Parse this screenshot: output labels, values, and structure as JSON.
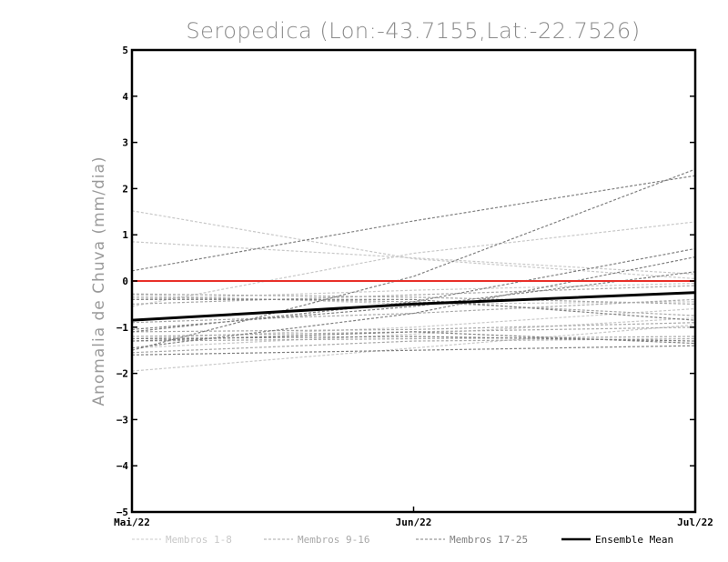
{
  "chart_data": {
    "type": "line",
    "title": "Seropedica (Lon:-43.7155,Lat:-22.7526)",
    "ylabel": "Anomalia de Chuva (mm/dia)",
    "xlabel": "",
    "categories": [
      "Mai/22",
      "Jun/22",
      "Jul/22"
    ],
    "ylim": [
      -5,
      5
    ],
    "yticks": [
      -5,
      -4,
      -3,
      -2,
      -1,
      0,
      1,
      2,
      3,
      4,
      5
    ],
    "reference_line": {
      "y": 0,
      "color": "#e8302a"
    },
    "legend": [
      {
        "label": "Membros 1-8",
        "color": "#c8c8c8"
      },
      {
        "label": "Membros 9-16",
        "color": "#a8a8a8"
      },
      {
        "label": "Membros 17-25",
        "color": "#7f7f7f"
      },
      {
        "label": "Ensemble Mean",
        "color": "#000000"
      }
    ],
    "series": [
      {
        "group": 0,
        "values": [
          1.52,
          0.48,
          0.05
        ]
      },
      {
        "group": 0,
        "values": [
          0.85,
          0.5,
          0.15
        ]
      },
      {
        "group": 0,
        "values": [
          -0.55,
          0.6,
          1.28
        ]
      },
      {
        "group": 0,
        "values": [
          -1.95,
          -1.45,
          -0.95
        ]
      },
      {
        "group": 0,
        "values": [
          -0.4,
          -0.2,
          -0.05
        ]
      },
      {
        "group": 0,
        "values": [
          -1.45,
          -1.15,
          -0.8
        ]
      },
      {
        "group": 0,
        "values": [
          -0.3,
          -0.5,
          -0.45
        ]
      },
      {
        "group": 0,
        "values": [
          -1.25,
          -1.0,
          -0.6
        ]
      },
      {
        "group": 1,
        "values": [
          -0.28,
          -0.35,
          -0.5
        ]
      },
      {
        "group": 1,
        "values": [
          -1.2,
          -1.1,
          -1.0
        ]
      },
      {
        "group": 1,
        "values": [
          -1.3,
          -1.25,
          -1.2
        ]
      },
      {
        "group": 1,
        "values": [
          -0.5,
          -0.3,
          -0.1
        ]
      },
      {
        "group": 1,
        "values": [
          -1.1,
          -1.05,
          -0.9
        ]
      },
      {
        "group": 1,
        "values": [
          -0.35,
          -0.45,
          -0.75
        ]
      },
      {
        "group": 1,
        "values": [
          -1.55,
          -1.3,
          -1.25
        ]
      },
      {
        "group": 1,
        "values": [
          -0.9,
          -0.7,
          -0.4
        ]
      },
      {
        "group": 2,
        "values": [
          0.22,
          1.3,
          2.28
        ]
      },
      {
        "group": 2,
        "values": [
          -1.5,
          0.1,
          2.42
        ]
      },
      {
        "group": 2,
        "values": [
          -1.45,
          -0.7,
          0.52
        ]
      },
      {
        "group": 2,
        "values": [
          -1.1,
          -0.45,
          0.7
        ]
      },
      {
        "group": 2,
        "values": [
          -1.6,
          -1.5,
          -1.4
        ]
      },
      {
        "group": 2,
        "values": [
          -1.3,
          -1.1,
          -1.35
        ]
      },
      {
        "group": 2,
        "values": [
          -1.05,
          -0.55,
          0.2
        ]
      },
      {
        "group": 2,
        "values": [
          -1.25,
          -1.2,
          -1.3
        ]
      },
      {
        "group": 2,
        "values": [
          -0.4,
          -0.4,
          -0.85
        ]
      }
    ],
    "mean": {
      "name": "Ensemble Mean",
      "values": [
        -0.85,
        -0.5,
        -0.25
      ]
    }
  }
}
